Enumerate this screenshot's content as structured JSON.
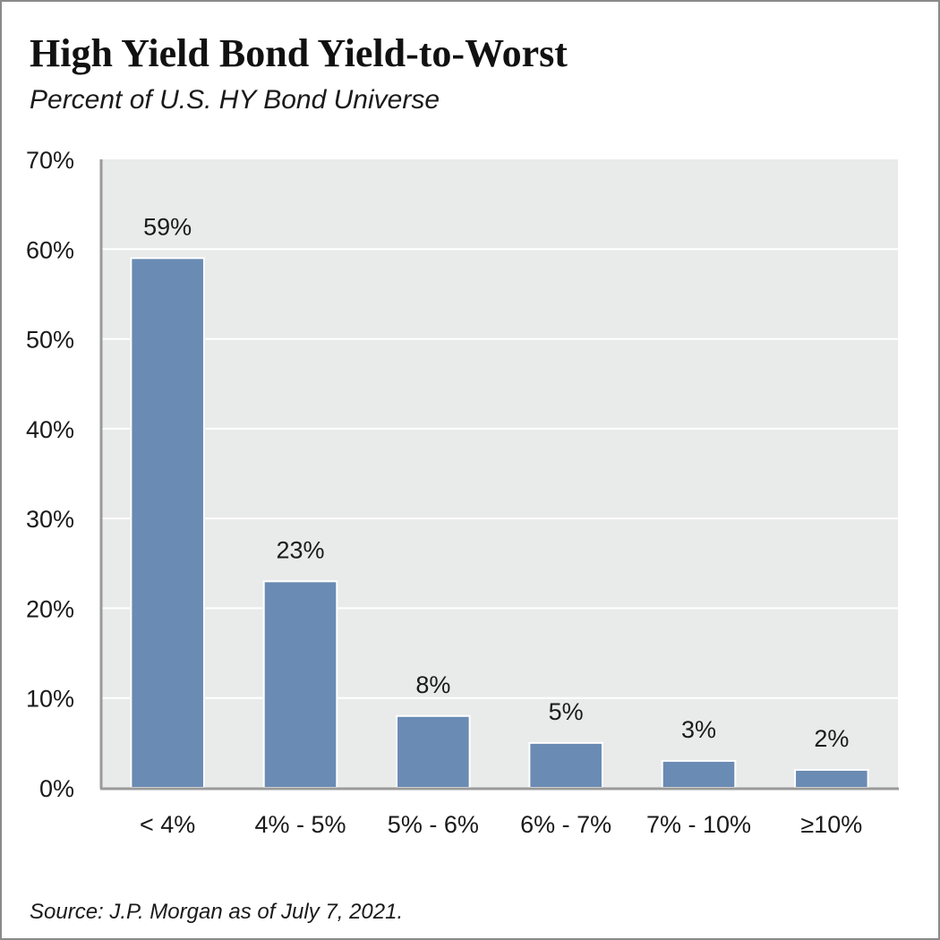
{
  "chart_data": {
    "type": "bar",
    "title": "High Yield Bond Yield-to-Worst",
    "subtitle": "Percent of U.S. HY Bond Universe",
    "categories": [
      "< 4%",
      "4% - 5%",
      "5% - 6%",
      "6% - 7%",
      "7% - 10%",
      "≥10%"
    ],
    "values": [
      59,
      23,
      8,
      5,
      3,
      2
    ],
    "data_labels": [
      "59%",
      "23%",
      "8%",
      "5%",
      "3%",
      "2%"
    ],
    "y_ticks": [
      0,
      10,
      20,
      30,
      40,
      50,
      60,
      70
    ],
    "y_tick_labels": [
      "0%",
      "10%",
      "20%",
      "30%",
      "40%",
      "50%",
      "60%",
      "70%"
    ],
    "ylim": [
      0,
      70
    ],
    "xlabel": "",
    "ylabel": "",
    "grid": true,
    "legend": "none",
    "colors": {
      "bar": "#6a8bb3",
      "plot_background": "#e9eaea",
      "gridline": "#ffffff",
      "axis": "#9a9a9a"
    }
  },
  "source": "Source: J.P. Morgan as of July 7, 2021."
}
